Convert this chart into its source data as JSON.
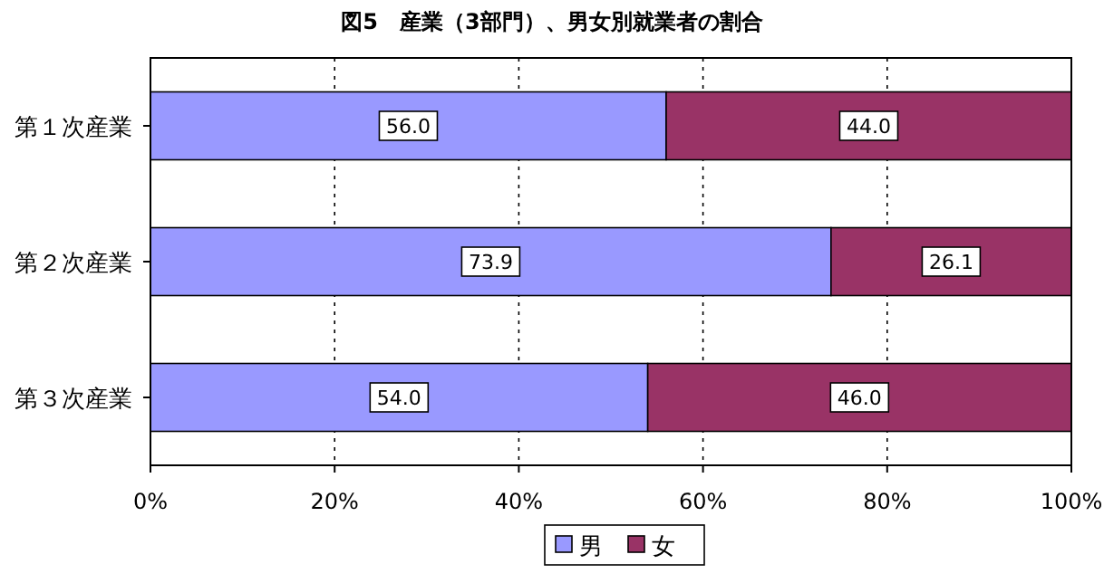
{
  "chart_data": {
    "type": "bar",
    "title": "図5　産業（3部門）、男女別就業者の割合",
    "orientation": "horizontal",
    "stacked": true,
    "categories": [
      "第１次産業",
      "第２次産業",
      "第３次産業"
    ],
    "series": [
      {
        "name": "男",
        "color": "#9999ff",
        "values": [
          56.0,
          73.9,
          54.0
        ],
        "value_labels": [
          "56.0",
          "73.9",
          "54.0"
        ]
      },
      {
        "name": "女",
        "color": "#993366",
        "values": [
          44.0,
          26.1,
          46.0
        ],
        "value_labels": [
          "44.0",
          "26.1",
          "46.0"
        ]
      }
    ],
    "xlim": [
      0,
      100
    ],
    "xticks": [
      {
        "value": 0,
        "label": "0%"
      },
      {
        "value": 20,
        "label": "20%"
      },
      {
        "value": 40,
        "label": "40%"
      },
      {
        "value": 60,
        "label": "60%"
      },
      {
        "value": 80,
        "label": "80%"
      },
      {
        "value": 100,
        "label": "100%"
      }
    ],
    "grid": "x",
    "line_style": "dotted",
    "legend": "bottom"
  }
}
